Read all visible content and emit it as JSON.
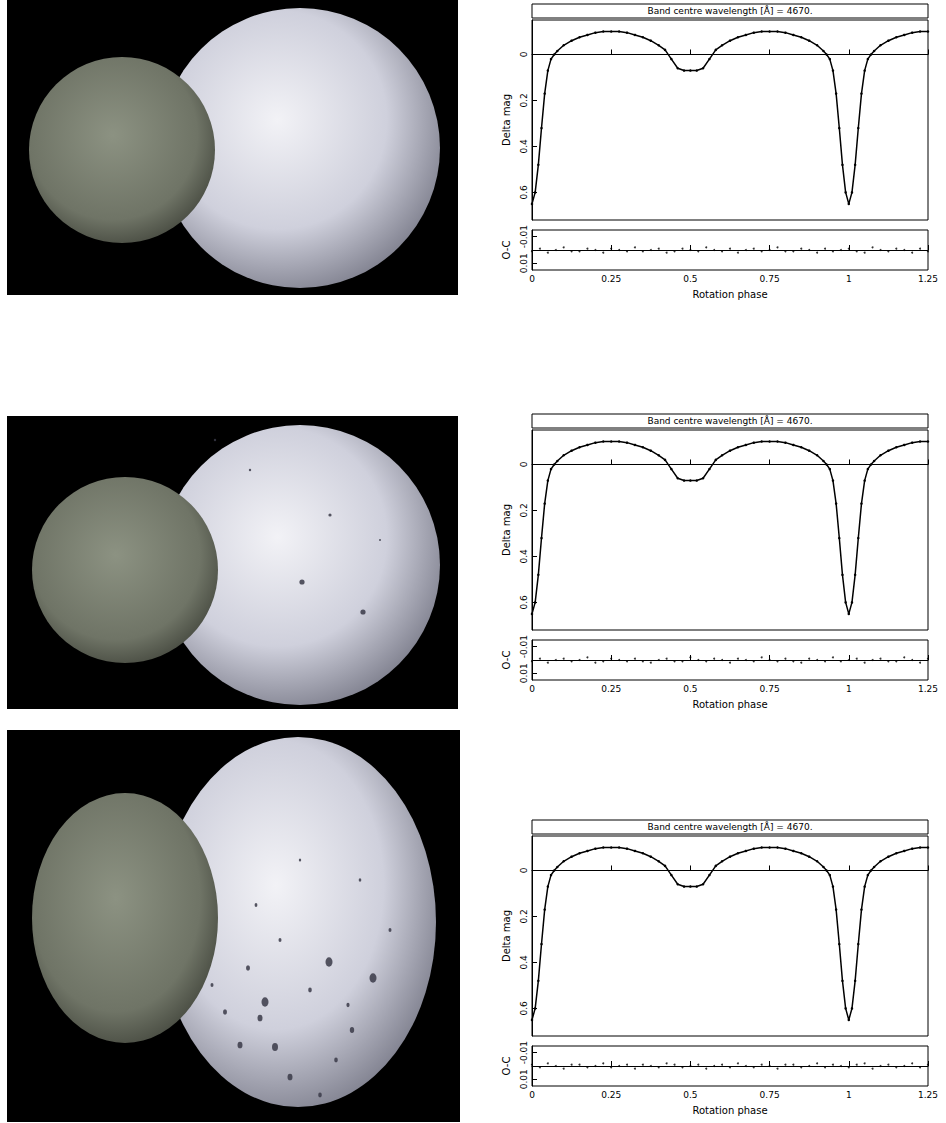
{
  "chart_data": [
    {
      "type": "line",
      "title": "Band centre wavelength [Å] = 4670.",
      "y_label": "Delta mag",
      "color": "#000000",
      "marker": "circle",
      "tick_labels": "y",
      "x": [
        0,
        0.01,
        0.02,
        0.03,
        0.04,
        0.05,
        0.06,
        0.07,
        0.08,
        0.1,
        0.125,
        0.15,
        0.175,
        0.2,
        0.225,
        0.25,
        0.275,
        0.3,
        0.325,
        0.35,
        0.375,
        0.4,
        0.42,
        0.44,
        0.46,
        0.48,
        0.5,
        0.52,
        0.54,
        0.56,
        0.58,
        0.6,
        0.625,
        0.65,
        0.675,
        0.7,
        0.725,
        0.75,
        0.775,
        0.8,
        0.825,
        0.85,
        0.875,
        0.9,
        0.92,
        0.93,
        0.94,
        0.95,
        0.96,
        0.97,
        0.98,
        0.99,
        1,
        1.01,
        1.02,
        1.03,
        1.04,
        1.05,
        1.06,
        1.07,
        1.08,
        1.1,
        1.125,
        1.15,
        1.175,
        1.2,
        1.225,
        1.25
      ],
      "values": [
        0.65,
        0.6,
        0.48,
        0.32,
        0.17,
        0.07,
        0.02,
        0.0,
        -0.015,
        -0.04,
        -0.06,
        -0.075,
        -0.085,
        -0.095,
        -0.1,
        -0.1,
        -0.1,
        -0.095,
        -0.085,
        -0.075,
        -0.06,
        -0.04,
        -0.02,
        0.02,
        0.06,
        0.07,
        0.07,
        0.07,
        0.06,
        0.02,
        -0.02,
        -0.04,
        -0.06,
        -0.075,
        -0.085,
        -0.095,
        -0.1,
        -0.1,
        -0.1,
        -0.095,
        -0.085,
        -0.075,
        -0.06,
        -0.04,
        -0.015,
        0.0,
        0.02,
        0.07,
        0.17,
        0.32,
        0.48,
        0.6,
        0.65,
        0.6,
        0.48,
        0.32,
        0.17,
        0.07,
        0.02,
        0.0,
        -0.015,
        -0.04,
        -0.06,
        -0.075,
        -0.085,
        -0.095,
        -0.1,
        -0.1
      ],
      "xlim": [
        0,
        1.25
      ],
      "xticks": [
        0,
        0.25,
        0.5,
        0.75,
        1,
        1.25
      ],
      "ylim": [
        0.72,
        -0.15
      ],
      "yticks": [
        0,
        0.2,
        0.4,
        0.6
      ]
    },
    {
      "type": "scatter",
      "y_label": "O-C",
      "x_label": "Rotation phase",
      "color": "#000000",
      "marker": "circle",
      "x": [
        0,
        0.025,
        0.05,
        0.075,
        0.1,
        0.125,
        0.15,
        0.175,
        0.2,
        0.225,
        0.25,
        0.275,
        0.3,
        0.325,
        0.35,
        0.375,
        0.4,
        0.425,
        0.45,
        0.475,
        0.5,
        0.525,
        0.55,
        0.575,
        0.6,
        0.625,
        0.65,
        0.675,
        0.7,
        0.725,
        0.75,
        0.775,
        0.8,
        0.825,
        0.85,
        0.875,
        0.9,
        0.925,
        0.95,
        0.975,
        1,
        1.025,
        1.05,
        1.075,
        1.1,
        1.125,
        1.15,
        1.175,
        1.2,
        1.225,
        1.25
      ],
      "values": [
        0.001,
        -0.001,
        0.002,
        0,
        -0.002,
        0.001,
        0.001,
        -0.001,
        0,
        0.002,
        -0.001,
        0,
        0.001,
        -0.002,
        0.001,
        0,
        -0.001,
        0.002,
        0.001,
        -0.001,
        0,
        0.001,
        -0.002,
        0,
        0.001,
        -0.001,
        0.002,
        0,
        -0.001,
        0.001,
        0,
        -0.002,
        0.001,
        0.001,
        -0.001,
        0,
        0.002,
        -0.001,
        0.001,
        0,
        -0.001,
        0.001,
        0.002,
        -0.002,
        0,
        0.001,
        -0.001,
        0,
        0.002,
        -0.001,
        0.001
      ],
      "xlim": [
        0,
        1.25
      ],
      "xticks": [
        0,
        0.25,
        0.5,
        0.75,
        1,
        1.25
      ],
      "ylim": [
        0.015,
        -0.015
      ],
      "yticks": [
        -0.01,
        0,
        0.01
      ]
    },
    {
      "type": "line",
      "title": "Band centre wavelength [Å] = 4670.",
      "y_label": "Delta mag",
      "color": "#000000",
      "marker": "circle",
      "tick_labels": "y",
      "x": [
        0,
        0.01,
        0.02,
        0.03,
        0.04,
        0.05,
        0.06,
        0.07,
        0.08,
        0.1,
        0.125,
        0.15,
        0.175,
        0.2,
        0.225,
        0.25,
        0.275,
        0.3,
        0.325,
        0.35,
        0.375,
        0.4,
        0.42,
        0.44,
        0.46,
        0.48,
        0.5,
        0.52,
        0.54,
        0.56,
        0.58,
        0.6,
        0.625,
        0.65,
        0.675,
        0.7,
        0.725,
        0.75,
        0.775,
        0.8,
        0.825,
        0.85,
        0.875,
        0.9,
        0.92,
        0.93,
        0.94,
        0.95,
        0.96,
        0.97,
        0.98,
        0.99,
        1,
        1.01,
        1.02,
        1.03,
        1.04,
        1.05,
        1.06,
        1.07,
        1.08,
        1.1,
        1.125,
        1.15,
        1.175,
        1.2,
        1.225,
        1.25
      ],
      "values": [
        0.65,
        0.6,
        0.48,
        0.32,
        0.17,
        0.07,
        0.02,
        0.0,
        -0.015,
        -0.04,
        -0.06,
        -0.075,
        -0.085,
        -0.095,
        -0.1,
        -0.1,
        -0.1,
        -0.095,
        -0.085,
        -0.075,
        -0.06,
        -0.04,
        -0.02,
        0.02,
        0.06,
        0.07,
        0.07,
        0.07,
        0.06,
        0.02,
        -0.02,
        -0.04,
        -0.06,
        -0.075,
        -0.085,
        -0.095,
        -0.1,
        -0.1,
        -0.1,
        -0.095,
        -0.085,
        -0.075,
        -0.06,
        -0.04,
        -0.015,
        0.0,
        0.02,
        0.07,
        0.17,
        0.32,
        0.48,
        0.6,
        0.65,
        0.6,
        0.48,
        0.32,
        0.17,
        0.07,
        0.02,
        0.0,
        -0.015,
        -0.04,
        -0.06,
        -0.075,
        -0.085,
        -0.095,
        -0.1,
        -0.1
      ],
      "xlim": [
        0,
        1.25
      ],
      "xticks": [
        0,
        0.25,
        0.5,
        0.75,
        1,
        1.25
      ],
      "ylim": [
        0.72,
        -0.15
      ],
      "yticks": [
        0,
        0.2,
        0.4,
        0.6
      ]
    },
    {
      "type": "scatter",
      "y_label": "O-C",
      "x_label": "Rotation phase",
      "color": "#000000",
      "marker": "circle",
      "x": [
        0,
        0.025,
        0.05,
        0.075,
        0.1,
        0.125,
        0.15,
        0.175,
        0.2,
        0.225,
        0.25,
        0.275,
        0.3,
        0.325,
        0.35,
        0.375,
        0.4,
        0.425,
        0.45,
        0.475,
        0.5,
        0.525,
        0.55,
        0.575,
        0.6,
        0.625,
        0.65,
        0.675,
        0.7,
        0.725,
        0.75,
        0.775,
        0.8,
        0.825,
        0.85,
        0.875,
        0.9,
        0.925,
        0.95,
        0.975,
        1,
        1.025,
        1.05,
        1.075,
        1.1,
        1.125,
        1.15,
        1.175,
        1.2,
        1.225,
        1.25
      ],
      "values": [
        0.001,
        -0.001,
        0.002,
        0,
        -0.001,
        0.001,
        0,
        -0.002,
        0.002,
        0.001,
        -0.001,
        0,
        0.001,
        -0.001,
        0.001,
        0.002,
        0,
        -0.001,
        0.001,
        0.001,
        -0.002,
        0,
        0.001,
        -0.001,
        0,
        0.002,
        -0.001,
        0,
        0.001,
        -0.002,
        0,
        0.001,
        -0.001,
        0.001,
        0.002,
        -0.001,
        0,
        0.001,
        -0.002,
        0.001,
        0,
        -0.001,
        0.002,
        0,
        -0.001,
        0.001,
        0.001,
        -0.002,
        0,
        0.002,
        -0.001
      ],
      "xlim": [
        0,
        1.25
      ],
      "xticks": [
        0,
        0.25,
        0.5,
        0.75,
        1,
        1.25
      ],
      "ylim": [
        0.015,
        -0.015
      ],
      "yticks": [
        -0.01,
        0,
        0.01
      ]
    },
    {
      "type": "line",
      "title": "Band centre wavelength [Å] = 4670.",
      "y_label": "Delta mag",
      "color": "#000000",
      "marker": "circle",
      "tick_labels": "y",
      "x": [
        0,
        0.01,
        0.02,
        0.03,
        0.04,
        0.05,
        0.06,
        0.07,
        0.08,
        0.1,
        0.125,
        0.15,
        0.175,
        0.2,
        0.225,
        0.25,
        0.275,
        0.3,
        0.325,
        0.35,
        0.375,
        0.4,
        0.42,
        0.44,
        0.46,
        0.48,
        0.5,
        0.52,
        0.54,
        0.56,
        0.58,
        0.6,
        0.625,
        0.65,
        0.675,
        0.7,
        0.725,
        0.75,
        0.775,
        0.8,
        0.825,
        0.85,
        0.875,
        0.9,
        0.92,
        0.93,
        0.94,
        0.95,
        0.96,
        0.97,
        0.98,
        0.99,
        1,
        1.01,
        1.02,
        1.03,
        1.04,
        1.05,
        1.06,
        1.07,
        1.08,
        1.1,
        1.125,
        1.15,
        1.175,
        1.2,
        1.225,
        1.25
      ],
      "values": [
        0.65,
        0.6,
        0.48,
        0.32,
        0.17,
        0.07,
        0.02,
        0.0,
        -0.015,
        -0.04,
        -0.06,
        -0.075,
        -0.085,
        -0.095,
        -0.1,
        -0.1,
        -0.1,
        -0.095,
        -0.085,
        -0.075,
        -0.06,
        -0.04,
        -0.02,
        0.02,
        0.06,
        0.07,
        0.07,
        0.07,
        0.06,
        0.02,
        -0.02,
        -0.04,
        -0.06,
        -0.075,
        -0.085,
        -0.095,
        -0.1,
        -0.1,
        -0.1,
        -0.095,
        -0.085,
        -0.075,
        -0.06,
        -0.04,
        -0.015,
        0.0,
        0.02,
        0.07,
        0.17,
        0.32,
        0.48,
        0.6,
        0.65,
        0.6,
        0.48,
        0.32,
        0.17,
        0.07,
        0.02,
        0.0,
        -0.015,
        -0.04,
        -0.06,
        -0.075,
        -0.085,
        -0.095,
        -0.1,
        -0.1
      ],
      "xlim": [
        0,
        1.25
      ],
      "xticks": [
        0,
        0.25,
        0.5,
        0.75,
        1,
        1.25
      ],
      "ylim": [
        0.72,
        -0.15
      ],
      "yticks": [
        0,
        0.2,
        0.4,
        0.6
      ]
    },
    {
      "type": "scatter",
      "y_label": "O-C",
      "x_label": "Rotation phase",
      "color": "#000000",
      "marker": "circle",
      "x": [
        0,
        0.025,
        0.05,
        0.075,
        0.1,
        0.125,
        0.15,
        0.175,
        0.2,
        0.225,
        0.25,
        0.275,
        0.3,
        0.325,
        0.35,
        0.375,
        0.4,
        0.425,
        0.45,
        0.475,
        0.5,
        0.525,
        0.55,
        0.575,
        0.6,
        0.625,
        0.65,
        0.675,
        0.7,
        0.725,
        0.75,
        0.775,
        0.8,
        0.825,
        0.85,
        0.875,
        0.9,
        0.925,
        0.95,
        0.975,
        1,
        1.025,
        1.05,
        1.075,
        1.1,
        1.125,
        1.15,
        1.175,
        1.2,
        1.225,
        1.25
      ],
      "values": [
        -0.001,
        0.001,
        -0.002,
        0,
        0.002,
        -0.001,
        -0.001,
        0.001,
        0,
        -0.002,
        0.001,
        0,
        -0.001,
        0.002,
        -0.001,
        0,
        0.001,
        -0.002,
        -0.001,
        0.001,
        0,
        -0.001,
        0.002,
        0,
        -0.001,
        0.001,
        -0.002,
        0,
        0.001,
        -0.001,
        0,
        0.002,
        -0.001,
        -0.001,
        0.001,
        0,
        -0.002,
        0.001,
        -0.001,
        0,
        0.001,
        -0.001,
        -0.002,
        0.002,
        0,
        -0.001,
        0.001,
        0,
        -0.002,
        0.001,
        -0.001
      ],
      "xlim": [
        0,
        1.25
      ],
      "xticks": [
        0,
        0.25,
        0.5,
        0.75,
        1,
        1.25
      ],
      "ylim": [
        0.015,
        -0.015
      ],
      "yticks": [
        -0.01,
        0,
        0.01
      ]
    }
  ]
}
